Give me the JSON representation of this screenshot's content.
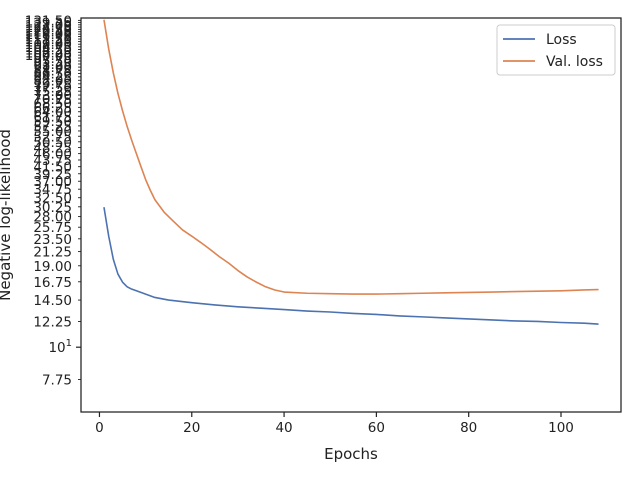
{
  "chart_data": {
    "type": "line",
    "xlabel": "Epochs",
    "ylabel": "Negative log-likelihood",
    "yscale": "log",
    "xlim": [
      -4,
      113
    ],
    "ylim": [
      6.0,
      134.0
    ],
    "grid": false,
    "legend_position": "top-right",
    "x_ticks": [
      0,
      20,
      40,
      60,
      80,
      100
    ],
    "y_major_ticks": [
      {
        "value": 10,
        "label": "10",
        "exp": "1"
      }
    ],
    "y_minor_ticks": [
      "7.75",
      "12.25",
      "14.50",
      "16.75",
      "19.00",
      "21.25",
      "23.50",
      "25.75",
      "28.00",
      "30.25",
      "32.50",
      "34.75",
      "37.00",
      "39.25",
      "41.50",
      "43.75",
      "46.00",
      "48.25",
      "50.50",
      "52.75",
      "55.00",
      "57.25",
      "59.50",
      "61.75",
      "64.00",
      "66.25",
      "68.50",
      "70.75",
      "73.00",
      "75.25",
      "77.50",
      "79.75",
      "82.00",
      "84.25",
      "86.50",
      "88.75",
      "91.00",
      "93.25",
      "95.50",
      "97.75",
      "100.00",
      "102.25",
      "104.50",
      "106.75",
      "109.00",
      "111.25",
      "113.50",
      "115.75",
      "118.00",
      "120.25",
      "122.50",
      "124.75",
      "127.00",
      "129.25",
      "131.50"
    ],
    "series": [
      {
        "name": "Loss",
        "color": "#4c72b0",
        "points": [
          [
            1,
            30.0
          ],
          [
            2,
            24.0
          ],
          [
            3,
            20.0
          ],
          [
            4,
            17.8
          ],
          [
            5,
            16.7
          ],
          [
            6,
            16.1
          ],
          [
            7,
            15.8
          ],
          [
            8,
            15.6
          ],
          [
            10,
            15.2
          ],
          [
            12,
            14.8
          ],
          [
            15,
            14.5
          ],
          [
            20,
            14.2
          ],
          [
            25,
            13.95
          ],
          [
            30,
            13.75
          ],
          [
            35,
            13.6
          ],
          [
            40,
            13.45
          ],
          [
            45,
            13.3
          ],
          [
            50,
            13.2
          ],
          [
            55,
            13.05
          ],
          [
            60,
            12.95
          ],
          [
            65,
            12.8
          ],
          [
            70,
            12.7
          ],
          [
            75,
            12.6
          ],
          [
            80,
            12.5
          ],
          [
            85,
            12.4
          ],
          [
            90,
            12.3
          ],
          [
            95,
            12.25
          ],
          [
            100,
            12.15
          ],
          [
            105,
            12.08
          ],
          [
            108,
            12.0
          ]
        ]
      },
      {
        "name": "Val. loss",
        "color": "#dd8452",
        "points": [
          [
            1,
            131.5
          ],
          [
            2,
            105.0
          ],
          [
            3,
            87.0
          ],
          [
            4,
            74.0
          ],
          [
            5,
            64.5
          ],
          [
            6,
            57.0
          ],
          [
            7,
            51.0
          ],
          [
            8,
            46.0
          ],
          [
            9,
            41.5
          ],
          [
            10,
            37.5
          ],
          [
            11,
            34.5
          ],
          [
            12,
            32.0
          ],
          [
            14,
            29.0
          ],
          [
            16,
            27.0
          ],
          [
            18,
            25.2
          ],
          [
            20,
            24.0
          ],
          [
            22,
            22.8
          ],
          [
            24,
            21.6
          ],
          [
            26,
            20.4
          ],
          [
            28,
            19.4
          ],
          [
            30,
            18.3
          ],
          [
            32,
            17.4
          ],
          [
            34,
            16.7
          ],
          [
            36,
            16.1
          ],
          [
            38,
            15.7
          ],
          [
            40,
            15.45
          ],
          [
            45,
            15.3
          ],
          [
            50,
            15.25
          ],
          [
            55,
            15.2
          ],
          [
            60,
            15.2
          ],
          [
            65,
            15.25
          ],
          [
            70,
            15.3
          ],
          [
            75,
            15.35
          ],
          [
            80,
            15.4
          ],
          [
            85,
            15.45
          ],
          [
            90,
            15.5
          ],
          [
            95,
            15.55
          ],
          [
            100,
            15.6
          ],
          [
            105,
            15.7
          ],
          [
            108,
            15.75
          ]
        ]
      }
    ]
  }
}
